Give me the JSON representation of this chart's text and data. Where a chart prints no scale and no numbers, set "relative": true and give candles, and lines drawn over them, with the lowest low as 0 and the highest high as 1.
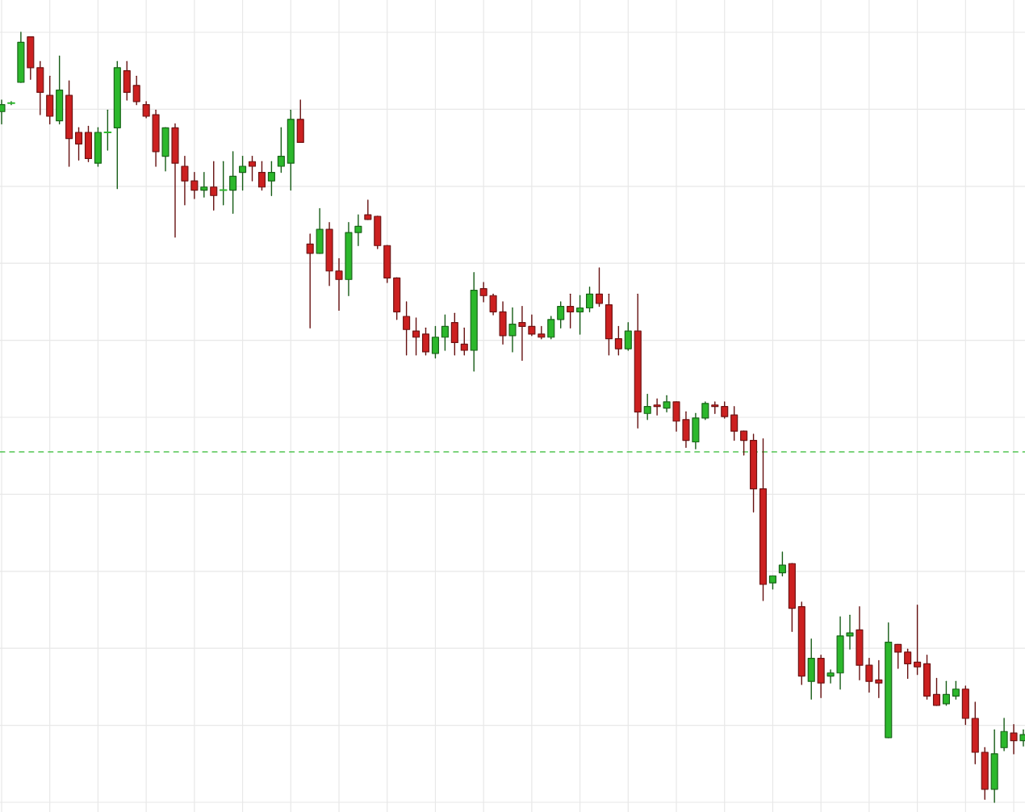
{
  "chart_data": {
    "type": "candlestick",
    "relative": true,
    "grid": true,
    "categories": [
      null,
      null,
      null,
      null,
      null,
      null,
      null,
      null,
      null,
      null,
      null,
      null,
      null,
      null,
      null,
      null,
      null,
      null,
      null,
      null,
      null,
      null,
      null,
      null,
      null,
      null,
      null,
      null,
      null,
      null,
      null,
      null,
      null,
      null,
      null,
      null,
      null,
      null,
      null,
      null,
      null,
      null,
      null,
      null,
      null,
      null,
      null,
      null,
      null,
      null,
      null,
      null,
      null,
      null,
      null,
      null,
      null,
      null,
      null,
      null,
      null,
      null,
      null,
      null,
      null,
      null,
      null,
      null,
      null,
      null,
      null,
      null,
      null,
      null,
      null,
      null,
      null,
      null,
      null,
      null,
      null,
      null,
      null,
      null,
      null,
      null,
      null,
      null,
      null,
      null,
      null,
      null,
      null,
      null,
      null,
      null,
      null,
      null,
      null,
      null,
      null,
      null,
      null,
      null,
      null,
      null,
      null
    ],
    "ohlc": [
      [
        0.897,
        0.912,
        0.881,
        0.906
      ],
      [
        0.908,
        0.91,
        0.906,
        0.908
      ],
      [
        0.935,
        1,
        0.935,
        0.987
      ],
      [
        0.994,
        0.994,
        0.939,
        0.954
      ],
      [
        0.954,
        0.962,
        0.893,
        0.922
      ],
      [
        0.918,
        0.943,
        0.881,
        0.891
      ],
      [
        0.885,
        0.969,
        0.881,
        0.925
      ],
      [
        0.918,
        0.937,
        0.826,
        0.862
      ],
      [
        0.87,
        0.876,
        0.834,
        0.855
      ],
      [
        0.87,
        0.878,
        0.832,
        0.836
      ],
      [
        0.83,
        0.876,
        0.826,
        0.87
      ],
      [
        0.87,
        0.899,
        0.847,
        0.87
      ],
      [
        0.876,
        0.962,
        0.797,
        0.954
      ],
      [
        0.95,
        0.962,
        0.912,
        0.922
      ],
      [
        0.931,
        0.943,
        0.906,
        0.91
      ],
      [
        0.906,
        0.91,
        0.889,
        0.891
      ],
      [
        0.893,
        0.899,
        0.826,
        0.845
      ],
      [
        0.839,
        0.876,
        0.82,
        0.876
      ],
      [
        0.876,
        0.881,
        0.734,
        0.83
      ],
      [
        0.826,
        0.839,
        0.776,
        0.807
      ],
      [
        0.807,
        0.818,
        0.784,
        0.795
      ],
      [
        0.795,
        0.818,
        0.786,
        0.799
      ],
      [
        0.799,
        0.832,
        0.769,
        0.788
      ],
      [
        0.795,
        0.832,
        0.776,
        0.795
      ],
      [
        0.795,
        0.845,
        0.765,
        0.813
      ],
      [
        0.818,
        0.839,
        0.795,
        0.826
      ],
      [
        0.832,
        0.839,
        0.807,
        0.826
      ],
      [
        0.818,
        0.832,
        0.795,
        0.799
      ],
      [
        0.807,
        0.832,
        0.788,
        0.818
      ],
      [
        0.826,
        0.876,
        0.818,
        0.839
      ],
      [
        0.83,
        0.899,
        0.795,
        0.887
      ],
      [
        0.887,
        0.912,
        0.857,
        0.857
      ],
      [
        0.725,
        0.738,
        0.616,
        0.713
      ],
      [
        0.713,
        0.771,
        0.713,
        0.744
      ],
      [
        0.744,
        0.753,
        0.671,
        0.69
      ],
      [
        0.69,
        0.706,
        0.639,
        0.679
      ],
      [
        0.679,
        0.753,
        0.658,
        0.74
      ],
      [
        0.74,
        0.763,
        0.723,
        0.748
      ],
      [
        0.763,
        0.782,
        0.757,
        0.757
      ],
      [
        0.761,
        0.761,
        0.719,
        0.723
      ],
      [
        0.723,
        0.723,
        0.675,
        0.681
      ],
      [
        0.681,
        0.681,
        0.627,
        0.637
      ],
      [
        0.631,
        0.65,
        0.581,
        0.614
      ],
      [
        0.612,
        0.629,
        0.581,
        0.604
      ],
      [
        0.608,
        0.616,
        0.581,
        0.585
      ],
      [
        0.583,
        0.618,
        0.577,
        0.604
      ],
      [
        0.604,
        0.633,
        0.587,
        0.618
      ],
      [
        0.623,
        0.635,
        0.581,
        0.597
      ],
      [
        0.595,
        0.616,
        0.581,
        0.587
      ],
      [
        0.587,
        0.688,
        0.56,
        0.665
      ],
      [
        0.667,
        0.675,
        0.65,
        0.658
      ],
      [
        0.658,
        0.66,
        0.633,
        0.637
      ],
      [
        0.637,
        0.65,
        0.595,
        0.606
      ],
      [
        0.606,
        0.642,
        0.585,
        0.621
      ],
      [
        0.623,
        0.644,
        0.574,
        0.618
      ],
      [
        0.618,
        0.633,
        0.606,
        0.608
      ],
      [
        0.608,
        0.618,
        0.602,
        0.604
      ],
      [
        0.604,
        0.631,
        0.602,
        0.627
      ],
      [
        0.627,
        0.65,
        0.616,
        0.644
      ],
      [
        0.644,
        0.66,
        0.616,
        0.637
      ],
      [
        0.637,
        0.658,
        0.608,
        0.642
      ],
      [
        0.642,
        0.669,
        0.637,
        0.66
      ],
      [
        0.66,
        0.694,
        0.644,
        0.648
      ],
      [
        0.646,
        0.66,
        0.581,
        0.602
      ],
      [
        0.602,
        0.618,
        0.581,
        0.589
      ],
      [
        0.589,
        0.623,
        0.587,
        0.612
      ],
      [
        0.612,
        0.66,
        0.486,
        0.507
      ],
      [
        0.505,
        0.53,
        0.497,
        0.514
      ],
      [
        0.516,
        0.524,
        0.503,
        0.514
      ],
      [
        0.512,
        0.528,
        0.507,
        0.52
      ],
      [
        0.52,
        0.52,
        0.482,
        0.495
      ],
      [
        0.497,
        0.507,
        0.461,
        0.47
      ],
      [
        0.468,
        0.505,
        0.459,
        0.499
      ],
      [
        0.499,
        0.52,
        0.497,
        0.518
      ],
      [
        0.516,
        0.52,
        0.505,
        0.514
      ],
      [
        0.514,
        0.52,
        0.499,
        0.501
      ],
      [
        0.503,
        0.514,
        0.47,
        0.482
      ],
      [
        0.482,
        0.482,
        0.451,
        0.47
      ],
      [
        0.47,
        0.478,
        0.377,
        0.407
      ],
      [
        0.407,
        0.472,
        0.262,
        0.283
      ],
      [
        0.285,
        0.294,
        0.277,
        0.294
      ],
      [
        0.298,
        0.325,
        0.294,
        0.308
      ],
      [
        0.31,
        0.31,
        0.222,
        0.252
      ],
      [
        0.254,
        0.26,
        0.153,
        0.164
      ],
      [
        0.157,
        0.212,
        0.134,
        0.187
      ],
      [
        0.187,
        0.191,
        0.136,
        0.155
      ],
      [
        0.164,
        0.172,
        0.155,
        0.168
      ],
      [
        0.168,
        0.241,
        0.147,
        0.216
      ],
      [
        0.216,
        0.243,
        0.199,
        0.22
      ],
      [
        0.224,
        0.254,
        0.159,
        0.178
      ],
      [
        0.178,
        0.187,
        0.143,
        0.157
      ],
      [
        0.159,
        0.184,
        0.136,
        0.155
      ],
      [
        0.084,
        0.233,
        0.084,
        0.208
      ],
      [
        0.205,
        0.205,
        0.174,
        0.195
      ],
      [
        0.195,
        0.199,
        0.161,
        0.18
      ],
      [
        0.182,
        0.256,
        0.166,
        0.176
      ],
      [
        0.18,
        0.191,
        0.134,
        0.138
      ],
      [
        0.14,
        0.161,
        0.126,
        0.126
      ],
      [
        0.128,
        0.157,
        0.126,
        0.14
      ],
      [
        0.138,
        0.157,
        0.134,
        0.147
      ],
      [
        0.147,
        0.151,
        0.101,
        0.109
      ],
      [
        0.109,
        0.13,
        0.05,
        0.065
      ],
      [
        0.065,
        0.071,
        0.004,
        0.017
      ],
      [
        0.017,
        0.094,
        0,
        0.063
      ],
      [
        0.071,
        0.109,
        0.067,
        0.092
      ],
      [
        0.09,
        0.101,
        0.063,
        0.08
      ],
      [
        0.08,
        0.094,
        0.073,
        0.088
      ]
    ],
    "colors": [
      "#2cb82c",
      "#2cb82c",
      "#2cb82c",
      "#cc2020",
      "#cc2020",
      "#cc2020",
      "#2cb82c",
      "#cc2020",
      "#cc2020",
      "#cc2020",
      "#2cb82c",
      "#2cb82c",
      "#2cb82c",
      "#cc2020",
      "#cc2020",
      "#cc2020",
      "#cc2020",
      "#2cb82c",
      "#cc2020",
      "#cc2020",
      "#cc2020",
      "#2cb82c",
      "#cc2020",
      "#2cb82c",
      "#2cb82c",
      "#2cb82c",
      "#cc2020",
      "#cc2020",
      "#2cb82c",
      "#2cb82c",
      "#2cb82c",
      "#cc2020",
      "#cc2020",
      "#2cb82c",
      "#cc2020",
      "#cc2020",
      "#2cb82c",
      "#2cb82c",
      "#cc2020",
      "#cc2020",
      "#cc2020",
      "#cc2020",
      "#cc2020",
      "#cc2020",
      "#cc2020",
      "#2cb82c",
      "#2cb82c",
      "#cc2020",
      "#cc2020",
      "#2cb82c",
      "#cc2020",
      "#cc2020",
      "#cc2020",
      "#2cb82c",
      "#cc2020",
      "#cc2020",
      "#cc2020",
      "#2cb82c",
      "#2cb82c",
      "#cc2020",
      "#2cb82c",
      "#2cb82c",
      "#cc2020",
      "#cc2020",
      "#cc2020",
      "#2cb82c",
      "#cc2020",
      "#2cb82c",
      "#cc2020",
      "#2cb82c",
      "#cc2020",
      "#cc2020",
      "#2cb82c",
      "#2cb82c",
      "#cc2020",
      "#cc2020",
      "#cc2020",
      "#cc2020",
      "#cc2020",
      "#cc2020",
      "#2cb82c",
      "#2cb82c",
      "#cc2020",
      "#cc2020",
      "#2cb82c",
      "#cc2020",
      "#2cb82c",
      "#2cb82c",
      "#2cb82c",
      "#cc2020",
      "#cc2020",
      "#cc2020",
      "#2cb82c",
      "#cc2020",
      "#cc2020",
      "#cc2020",
      "#cc2020",
      "#cc2020",
      "#2cb82c",
      "#2cb82c",
      "#cc2020",
      "#cc2020",
      "#cc2020",
      "#2cb82c",
      "#2cb82c",
      "#cc2020",
      "#2cb82c"
    ],
    "ref_lines": [
      {
        "axis": "y",
        "value": 0.455,
        "color": "#33bb33",
        "line_style": "dashed"
      }
    ]
  }
}
